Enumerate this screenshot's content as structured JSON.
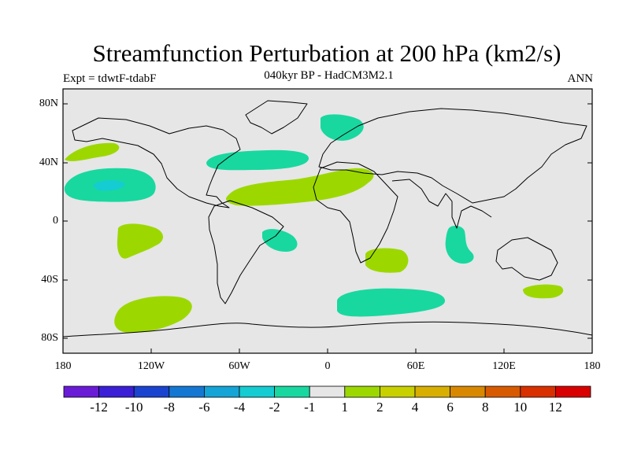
{
  "header": {
    "title": "Streamfunction Perturbation at 200 hPa (km2/s)",
    "experiment": "Expt = tdwtF-tdabF",
    "subtitle": "040kyr BP - HadCM3M2.1",
    "season": "ANN"
  },
  "map": {
    "lat_ticks": [
      "80N",
      "40N",
      "0",
      "40S",
      "80S"
    ],
    "lon_ticks": [
      "180",
      "120W",
      "60W",
      "0",
      "60E",
      "120E",
      "180"
    ],
    "ocean_color": "#e6e6e6",
    "coast_color": "#000000"
  },
  "colorbar": {
    "labels": [
      "-12",
      "-10",
      "-8",
      "-6",
      "-4",
      "-2",
      "-1",
      "1",
      "2",
      "4",
      "6",
      "8",
      "10",
      "12"
    ],
    "colors": [
      "#6a1bd6",
      "#3a1fd6",
      "#1a44cf",
      "#1478d3",
      "#14a4d6",
      "#14ccd2",
      "#18d8a0",
      "#e6e6e6",
      "#9cd800",
      "#c8d000",
      "#d8ae00",
      "#d88800",
      "#d85a00",
      "#d83000",
      "#d80000"
    ]
  },
  "contours": {
    "positive_1_2_color": "#9cd800",
    "negative_1_2_color": "#18d8a0",
    "negative_2_4_color": "#14ccd2"
  }
}
